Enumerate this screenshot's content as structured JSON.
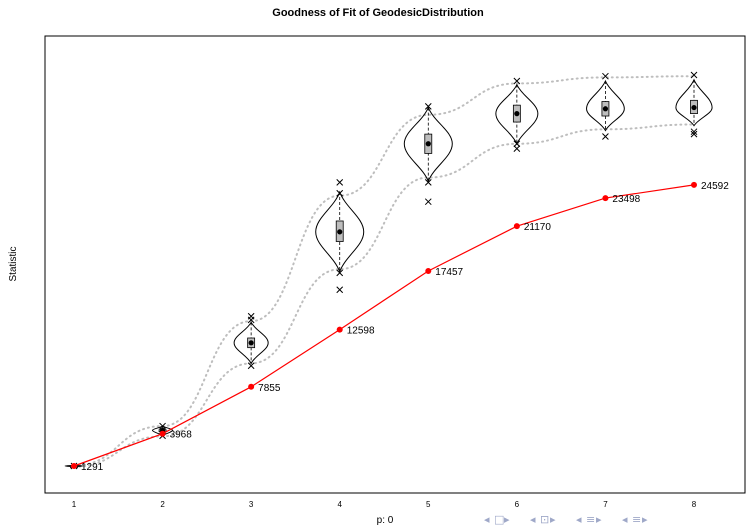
{
  "chart_data": {
    "type": "line",
    "title": "Goodness of Fit of GeodesicDistribution",
    "xlabel": "p: 0",
    "ylabel": "Statistic",
    "categories": [
      "1",
      "2",
      "3",
      "4",
      "5",
      "6",
      "7",
      "8"
    ],
    "ylim": [
      0,
      37000
    ],
    "grid": false,
    "series": [
      {
        "values": [
          1291,
          3968,
          7855,
          12598,
          17457,
          21170,
          23498,
          24592
        ],
        "color": "#ff0000",
        "data_labels": [
          "1291",
          "3968",
          "7855",
          "12598",
          "17457",
          "21170",
          "23498",
          "24592"
        ]
      }
    ],
    "simulated_envelope": {
      "color": "#bebebe",
      "style": "dotted",
      "upper": [
        1320,
        4600,
        13300,
        23700,
        30400,
        33000,
        33500,
        33600
      ],
      "lower": [
        1230,
        3750,
        9800,
        17600,
        25200,
        28000,
        29200,
        29600
      ]
    },
    "violins": [
      {
        "x": "1",
        "min": 1240,
        "q1": 1270,
        "median": 1291,
        "q3": 1310,
        "max": 1340,
        "outliers": [
          1291
        ]
      },
      {
        "x": "2",
        "min": 3800,
        "q1": 4200,
        "median": 4250,
        "q3": 4300,
        "max": 4600,
        "outliers": [
          3800,
          4600
        ]
      },
      {
        "x": "3",
        "min": 9800,
        "q1": 11100,
        "median": 11500,
        "q3": 11900,
        "max": 13200,
        "outliers": [
          9600,
          13400,
          13700
        ]
      },
      {
        "x": "4",
        "min": 17400,
        "q1": 19900,
        "median": 20700,
        "q3": 21600,
        "max": 24000,
        "outliers": [
          15900,
          17300,
          23900,
          24800
        ]
      },
      {
        "x": "5",
        "min": 24900,
        "q1": 27200,
        "median": 28000,
        "q3": 28800,
        "max": 31000,
        "outliers": [
          23200,
          24800,
          31100
        ]
      },
      {
        "x": "6",
        "min": 28000,
        "q1": 29800,
        "median": 30500,
        "q3": 31200,
        "max": 32900,
        "outliers": [
          27600,
          28000,
          33200
        ]
      },
      {
        "x": "7",
        "min": 29100,
        "q1": 30300,
        "median": 30900,
        "q3": 31500,
        "max": 33200,
        "outliers": [
          28600,
          33600
        ]
      },
      {
        "x": "8",
        "min": 29500,
        "q1": 30500,
        "median": 31000,
        "q3": 31600,
        "max": 33300,
        "outliers": [
          28800,
          29000,
          33700
        ]
      }
    ]
  },
  "nav": {
    "glyphs": [
      "◂",
      "□",
      "▸",
      "◂",
      "⊡",
      "▸",
      "◂",
      "≡",
      "▸",
      "◂",
      "≡",
      "▸"
    ],
    "icons": [
      "nav-prev-icon",
      "frame-icon",
      "nav-next-icon",
      "nav-prev-icon",
      "subsection-icon",
      "nav-next-icon",
      "nav-prev-icon",
      "section-icon",
      "nav-next-icon",
      "nav-prev-icon",
      "toc-icon",
      "nav-next-icon"
    ]
  }
}
